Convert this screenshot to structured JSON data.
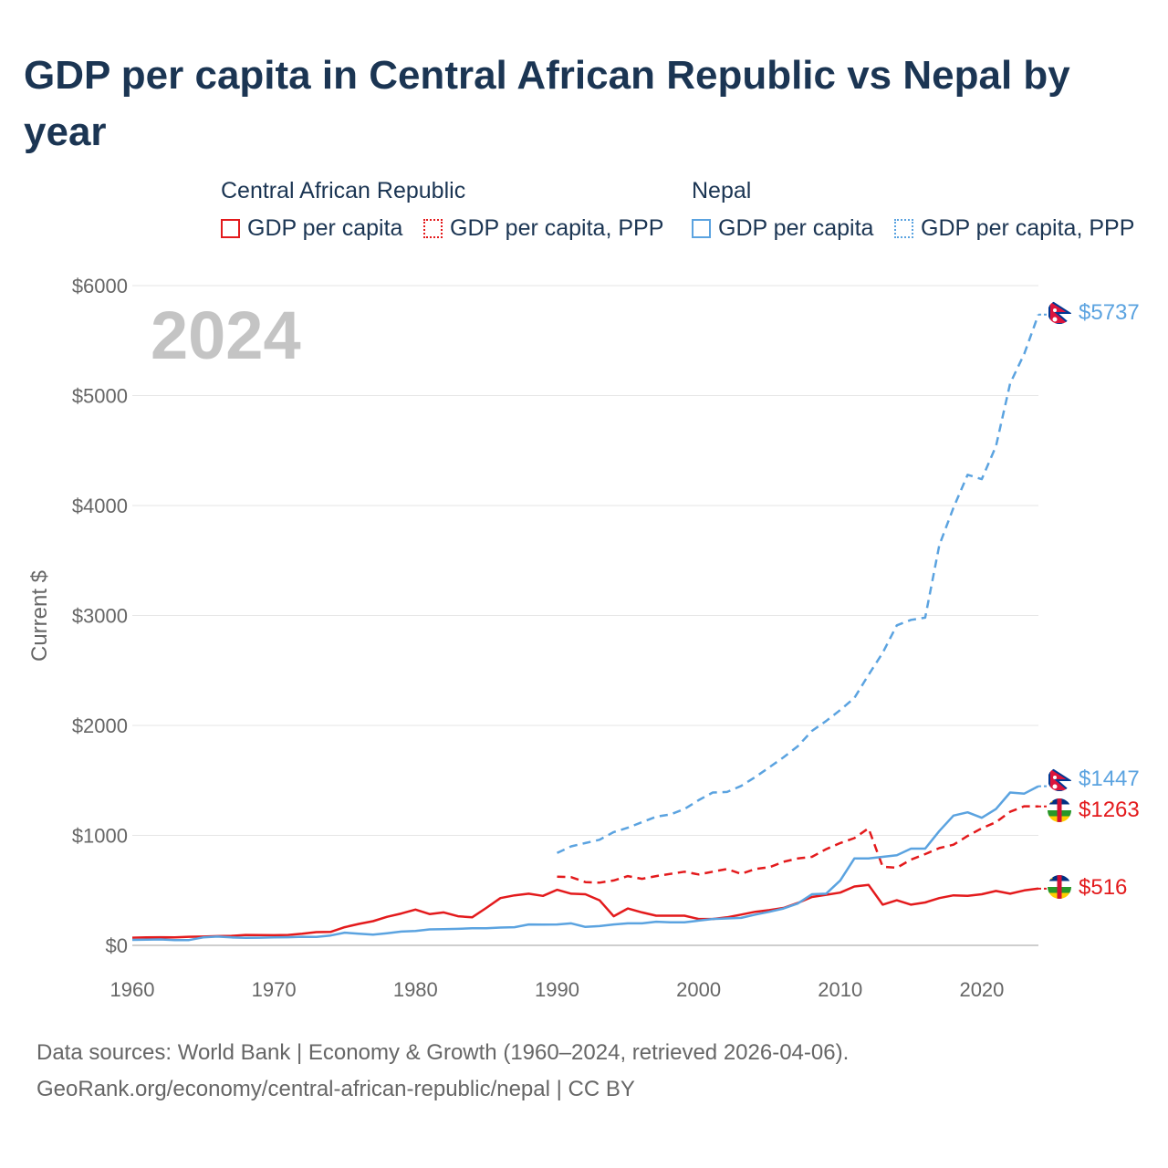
{
  "chart_data": {
    "type": "line",
    "title": "GDP per capita in Central African Republic vs Nepal by year",
    "ylabel": "Current $",
    "xlabel": "",
    "xlim": [
      1960,
      2024
    ],
    "ylim": [
      0,
      6000
    ],
    "xticks": [
      1960,
      1970,
      1980,
      1990,
      2000,
      2010,
      2020
    ],
    "xtick_labels": [
      "1960",
      "1970",
      "1980",
      "1990",
      "2000",
      "2010",
      "2020"
    ],
    "yticks": [
      0,
      1000,
      2000,
      3000,
      4000,
      5000,
      6000
    ],
    "ytick_labels": [
      "$0",
      "$1000",
      "$2000",
      "$3000",
      "$4000",
      "$5000",
      "$6000"
    ],
    "year_watermark": "2024",
    "legend": {
      "groups": [
        {
          "title": "Central African Republic",
          "items": [
            "GDP per capita",
            "GDP per capita, PPP"
          ]
        },
        {
          "title": "Nepal",
          "items": [
            "GDP per capita",
            "GDP per capita, PPP"
          ]
        }
      ]
    },
    "series": [
      {
        "name": "Central African Republic — GDP per capita",
        "color": "#e31a1c",
        "dash": "solid",
        "end_label": "$516",
        "x": [
          1960,
          1961,
          1962,
          1963,
          1964,
          1965,
          1966,
          1967,
          1968,
          1969,
          1970,
          1971,
          1972,
          1973,
          1974,
          1975,
          1976,
          1977,
          1978,
          1979,
          1980,
          1981,
          1982,
          1983,
          1984,
          1985,
          1986,
          1987,
          1988,
          1989,
          1990,
          1991,
          1992,
          1993,
          1994,
          1995,
          1996,
          1997,
          1998,
          1999,
          2000,
          2001,
          2002,
          2003,
          2004,
          2005,
          2006,
          2007,
          2008,
          2009,
          2010,
          2011,
          2012,
          2013,
          2014,
          2015,
          2016,
          2017,
          2018,
          2019,
          2020,
          2021,
          2022,
          2023,
          2024
        ],
        "values": [
          70,
          72,
          74,
          72,
          78,
          80,
          84,
          86,
          95,
          93,
          92,
          95,
          105,
          120,
          122,
          165,
          195,
          220,
          260,
          290,
          325,
          285,
          300,
          265,
          255,
          340,
          430,
          455,
          470,
          450,
          505,
          470,
          465,
          410,
          265,
          335,
          300,
          270,
          270,
          270,
          240,
          240,
          255,
          280,
          305,
          320,
          340,
          385,
          440,
          460,
          480,
          535,
          550,
          370,
          410,
          370,
          390,
          430,
          455,
          450,
          465,
          495,
          470,
          500,
          516
        ]
      },
      {
        "name": "Central African Republic — GDP per capita, PPP",
        "color": "#e31a1c",
        "dash": "dashed",
        "end_label": "$1263",
        "x": [
          1990,
          1991,
          1992,
          1993,
          1994,
          1995,
          1996,
          1997,
          1998,
          1999,
          2000,
          2001,
          2002,
          2003,
          2004,
          2005,
          2006,
          2007,
          2008,
          2009,
          2010,
          2011,
          2012,
          2013,
          2014,
          2015,
          2016,
          2017,
          2018,
          2019,
          2020,
          2021,
          2022,
          2023,
          2024
        ],
        "values": [
          625,
          620,
          575,
          570,
          590,
          630,
          605,
          630,
          650,
          670,
          645,
          670,
          695,
          650,
          695,
          710,
          760,
          790,
          805,
          875,
          930,
          975,
          1065,
          715,
          705,
          780,
          830,
          885,
          915,
          995,
          1065,
          1120,
          1215,
          1265,
          1263
        ]
      },
      {
        "name": "Nepal — GDP per capita",
        "color": "#5ba3e0",
        "dash": "solid",
        "end_label": "$1447",
        "x": [
          1960,
          1961,
          1962,
          1963,
          1964,
          1965,
          1966,
          1967,
          1968,
          1969,
          1970,
          1971,
          1972,
          1973,
          1974,
          1975,
          1976,
          1977,
          1978,
          1979,
          1980,
          1981,
          1982,
          1983,
          1984,
          1985,
          1986,
          1987,
          1988,
          1989,
          1990,
          1991,
          1992,
          1993,
          1994,
          1995,
          1996,
          1997,
          1998,
          1999,
          2000,
          2001,
          2002,
          2003,
          2004,
          2005,
          2006,
          2007,
          2008,
          2009,
          2010,
          2011,
          2012,
          2013,
          2014,
          2015,
          2016,
          2017,
          2018,
          2019,
          2020,
          2021,
          2022,
          2023,
          2024
        ],
        "values": [
          50,
          52,
          54,
          48,
          48,
          72,
          80,
          72,
          68,
          70,
          72,
          74,
          78,
          76,
          90,
          115,
          105,
          98,
          110,
          125,
          130,
          145,
          148,
          150,
          155,
          155,
          162,
          165,
          190,
          188,
          190,
          200,
          168,
          175,
          190,
          200,
          200,
          215,
          210,
          210,
          225,
          240,
          245,
          250,
          280,
          305,
          335,
          380,
          465,
          470,
          590,
          790,
          790,
          805,
          820,
          880,
          880,
          1040,
          1180,
          1210,
          1160,
          1240,
          1390,
          1380,
          1447
        ]
      },
      {
        "name": "Nepal — GDP per capita, PPP",
        "color": "#5ba3e0",
        "dash": "dashed",
        "end_label": "$5737",
        "x": [
          1990,
          1991,
          1992,
          1993,
          1994,
          1995,
          1996,
          1997,
          1998,
          1999,
          2000,
          2001,
          2002,
          2003,
          2004,
          2005,
          2006,
          2007,
          2008,
          2009,
          2010,
          2011,
          2012,
          2013,
          2014,
          2015,
          2016,
          2017,
          2018,
          2019,
          2020,
          2021,
          2022,
          2023,
          2024
        ],
        "values": [
          840,
          900,
          930,
          960,
          1030,
          1070,
          1120,
          1170,
          1190,
          1240,
          1320,
          1390,
          1395,
          1450,
          1530,
          1620,
          1710,
          1810,
          1950,
          2040,
          2140,
          2250,
          2460,
          2660,
          2910,
          2960,
          2980,
          3640,
          3980,
          4280,
          4240,
          4540,
          5110,
          5380,
          5737
        ]
      }
    ]
  },
  "footer": {
    "line1": "Data sources: World Bank | Economy & Growth (1960–2024, retrieved 2026-04-06).",
    "line2": "GeoRank.org/economy/central-african-republic/nepal | CC BY"
  }
}
